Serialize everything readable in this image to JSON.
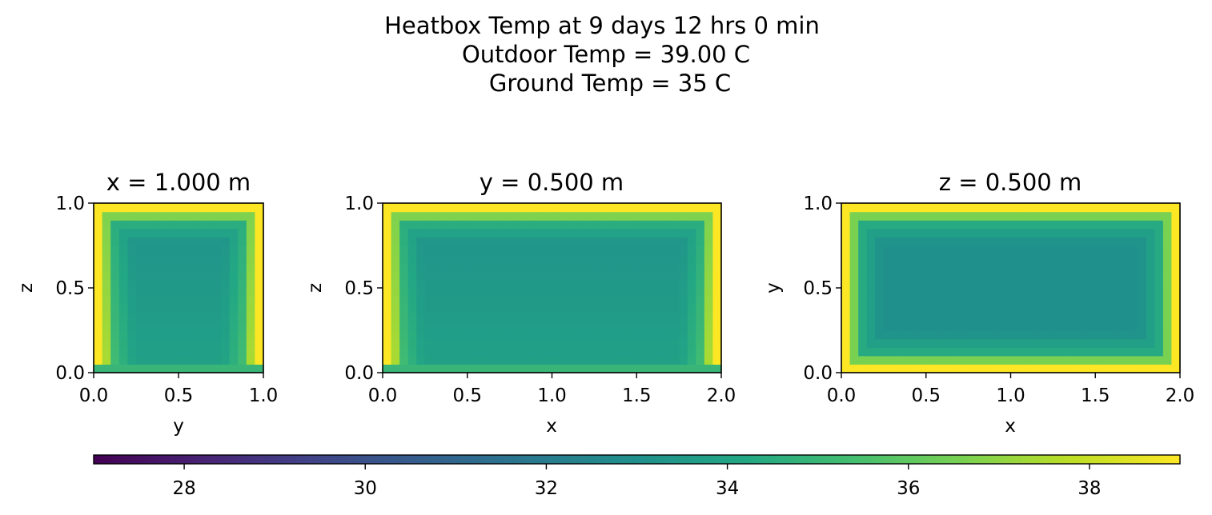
{
  "chart_data": {
    "type": "heatmap",
    "suptitle_lines": [
      "Heatbox Temp at 9 days 12 hrs 0 min",
      "Outdoor Temp = 39.00 C",
      "Ground Temp = 35 C"
    ],
    "colormap": "viridis",
    "color_range": [
      27,
      39
    ],
    "panels": [
      {
        "title": "x = 1.000 m",
        "xlabel": "y",
        "ylabel": "z",
        "xlim": [
          0.0,
          1.0
        ],
        "ylim": [
          0.0,
          1.0
        ],
        "xticks": [
          "0.0",
          "0.5",
          "1.0"
        ],
        "yticks": [
          "0.0",
          "0.5",
          "1.0"
        ],
        "nx": 20,
        "ny": 20,
        "boundary_temp": 39.0,
        "ground_temp": 35.0,
        "interior_min": 33.0,
        "closed_bottom": false
      },
      {
        "title": "y = 0.500 m",
        "xlabel": "x",
        "ylabel": "z",
        "xlim": [
          0.0,
          2.0
        ],
        "ylim": [
          0.0,
          1.0
        ],
        "xticks": [
          "0.0",
          "0.5",
          "1.0",
          "1.5",
          "2.0"
        ],
        "yticks": [
          "0.0",
          "0.5",
          "1.0"
        ],
        "nx": 40,
        "ny": 20,
        "boundary_temp": 39.0,
        "ground_temp": 35.0,
        "interior_min": 33.0,
        "closed_bottom": false
      },
      {
        "title": "z = 0.500 m",
        "xlabel": "x",
        "ylabel": "y",
        "xlim": [
          0.0,
          2.0
        ],
        "ylim": [
          0.0,
          1.0
        ],
        "xticks": [
          "0.0",
          "0.5",
          "1.0",
          "1.5",
          "2.0"
        ],
        "yticks": [
          "0.0",
          "0.5",
          "1.0"
        ],
        "nx": 40,
        "ny": 20,
        "boundary_temp": 39.0,
        "ground_temp": 39.0,
        "interior_min": 33.0,
        "closed_bottom": true
      }
    ],
    "colorbar": {
      "min": 27,
      "max": 39,
      "ticks": [
        28,
        30,
        32,
        34,
        36,
        38
      ],
      "tick_labels": [
        "28",
        "30",
        "32",
        "34",
        "36",
        "38"
      ]
    }
  }
}
